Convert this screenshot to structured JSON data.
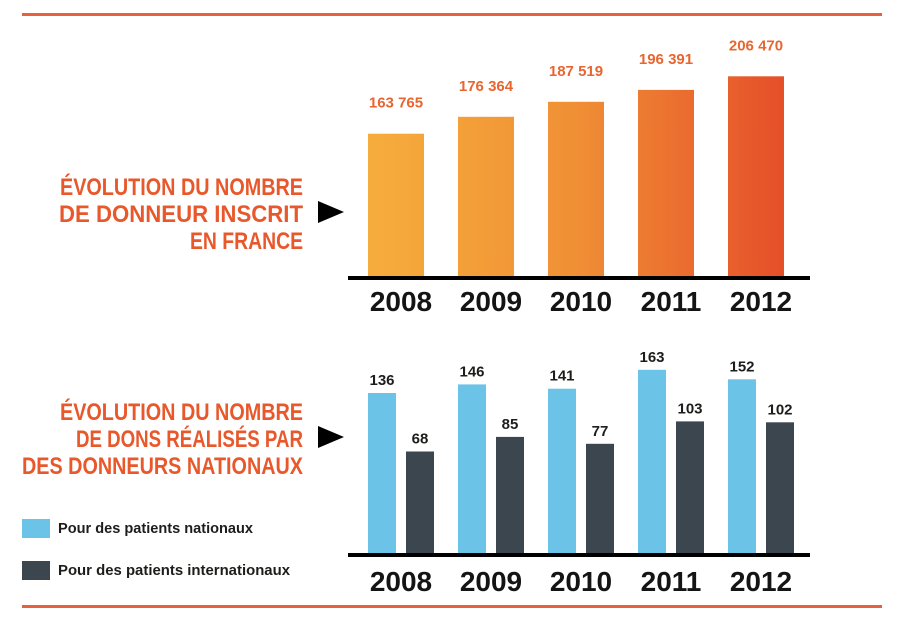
{
  "page": {
    "rule_color": "#e8613c",
    "title_color": "#e8582b",
    "pointer_icon": "triangle-right-icon"
  },
  "chart_data": [
    {
      "type": "bar",
      "title": [
        "ÉVOLUTION DU NOMBRE",
        "DE DONNEUR INSCRIT",
        "EN FRANCE"
      ],
      "categories": [
        "2008",
        "2009",
        "2010",
        "2011",
        "2012"
      ],
      "values": [
        163765,
        176364,
        187519,
        196391,
        206470
      ],
      "value_labels": [
        "163 765",
        "176 364",
        "187 519",
        "196 391",
        "206 470"
      ],
      "bar_gradient": [
        "#f6ad3c",
        "#f08f35",
        "#e54f29"
      ],
      "label_color": "#e9652f",
      "grid": false
    },
    {
      "type": "bar",
      "title": [
        "ÉVOLUTION DU NOMBRE",
        "DE DONS RÉALISÉS PAR",
        "DES DONNEURS NATIONAUX"
      ],
      "categories": [
        "2008",
        "2009",
        "2010",
        "2011",
        "2012"
      ],
      "series": [
        {
          "name": "Pour des patients nationaux",
          "values": [
            136,
            146,
            141,
            163,
            152
          ],
          "color": "#6cc3e8"
        },
        {
          "name": "Pour des patients internationaux",
          "values": [
            68,
            85,
            77,
            103,
            102
          ],
          "color": "#3b464e"
        }
      ],
      "legend": "bottom-left",
      "grid": false
    }
  ]
}
